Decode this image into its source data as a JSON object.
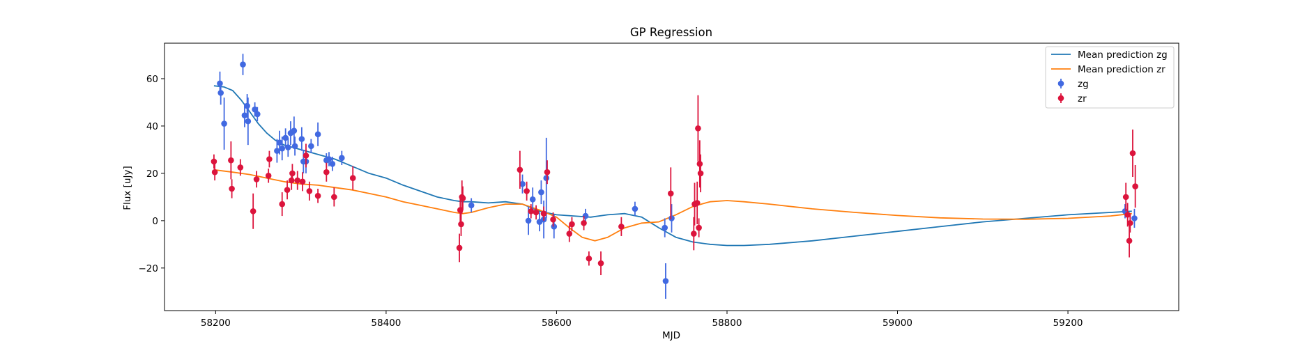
{
  "chart_data": {
    "type": "scatter",
    "title": "GP Regression",
    "xlabel": "MJD",
    "ylabel": "Flux [uJy]",
    "xlim": [
      58140,
      59330
    ],
    "ylim": [
      -38,
      75
    ],
    "xticks": [
      58200,
      58400,
      58600,
      58800,
      59000,
      59200
    ],
    "yticks": [
      -20,
      0,
      20,
      40,
      60
    ],
    "grid": false,
    "legend_position": "top-right",
    "lines": [
      {
        "name": "Mean prediction zg",
        "color": "#1f77b4",
        "x": [
          58198,
          58210,
          58220,
          58230,
          58240,
          58250,
          58260,
          58270,
          58280,
          58290,
          58300,
          58320,
          58340,
          58360,
          58380,
          58400,
          58420,
          58440,
          58460,
          58480,
          58490,
          58500,
          58520,
          58540,
          58560,
          58580,
          58600,
          58620,
          58640,
          58660,
          58680,
          58700,
          58720,
          58740,
          58760,
          58780,
          58800,
          58820,
          58850,
          58900,
          58950,
          59000,
          59050,
          59100,
          59150,
          59200,
          59250,
          59275
        ],
        "y": [
          57,
          56.5,
          55,
          51,
          46,
          41,
          37,
          34,
          32,
          31,
          30,
          28,
          26,
          23,
          20,
          18,
          15,
          12.5,
          10,
          8.5,
          8,
          8,
          7.5,
          8,
          7,
          4,
          2.5,
          2,
          1.5,
          2.5,
          3,
          1.5,
          -3,
          -7,
          -9,
          -10,
          -10.5,
          -10.5,
          -10,
          -8.5,
          -6.5,
          -4.5,
          -2.5,
          -0.5,
          1,
          2.5,
          3.5,
          4
        ]
      },
      {
        "name": "Mean prediction zr",
        "color": "#ff7f0e",
        "x": [
          58198,
          58220,
          58240,
          58260,
          58280,
          58300,
          58320,
          58340,
          58360,
          58380,
          58400,
          58420,
          58440,
          58460,
          58480,
          58490,
          58500,
          58520,
          58540,
          58560,
          58580,
          58600,
          58615,
          58630,
          58645,
          58660,
          58680,
          58700,
          58720,
          58740,
          58760,
          58780,
          58800,
          58820,
          58850,
          58900,
          58950,
          59000,
          59050,
          59100,
          59150,
          59200,
          59250,
          59275
        ],
        "y": [
          21.5,
          20.5,
          19.5,
          18,
          16.5,
          15.5,
          15,
          14,
          13,
          11.5,
          10,
          8,
          6.5,
          5,
          3.5,
          3,
          3.5,
          5.5,
          7,
          7,
          4.5,
          1.5,
          -3,
          -7,
          -8.5,
          -7,
          -3,
          -1,
          -0.5,
          2.5,
          6,
          8,
          8.5,
          8,
          7,
          5,
          3.5,
          2.2,
          1.2,
          0.7,
          0.6,
          1,
          2,
          3
        ]
      }
    ],
    "series": [
      {
        "name": "zg",
        "color": "#4169e1",
        "points": [
          [
            58205,
            58,
            5
          ],
          [
            58206,
            54,
            5
          ],
          [
            58210,
            41,
            11
          ],
          [
            58232,
            66,
            4.5
          ],
          [
            58234,
            44.5,
            5
          ],
          [
            58237,
            48.5,
            5
          ],
          [
            58238,
            42,
            10
          ],
          [
            58246,
            47,
            3
          ],
          [
            58249,
            45,
            3
          ],
          [
            58272,
            29.5,
            5
          ],
          [
            58275,
            33,
            5
          ],
          [
            58278,
            30.5,
            5
          ],
          [
            58282,
            35,
            4
          ],
          [
            58285,
            31,
            4
          ],
          [
            58288,
            37,
            5
          ],
          [
            58292,
            38,
            6
          ],
          [
            58293,
            31.5,
            4
          ],
          [
            58301,
            34.5,
            5
          ],
          [
            58303,
            25,
            5
          ],
          [
            58306,
            25,
            5
          ],
          [
            58312,
            31.5,
            3
          ],
          [
            58320,
            36.5,
            5
          ],
          [
            58330,
            25.5,
            3
          ],
          [
            58333,
            26,
            3
          ],
          [
            58337,
            24,
            3
          ],
          [
            58348,
            26.5,
            3
          ],
          [
            58500,
            6.5,
            3
          ],
          [
            58560,
            15.5,
            4
          ],
          [
            58567,
            0,
            6
          ],
          [
            58572,
            9,
            5
          ],
          [
            58580,
            -0.5,
            4
          ],
          [
            58582,
            12,
            5
          ],
          [
            58585,
            0.5,
            8
          ],
          [
            58588,
            18,
            17
          ],
          [
            58597,
            -2.5,
            5
          ],
          [
            58634,
            2,
            3
          ],
          [
            58692,
            5,
            3
          ],
          [
            58727,
            -3,
            4
          ],
          [
            58728,
            -25.5,
            7.5
          ],
          [
            58735,
            1,
            6
          ],
          [
            59267,
            4,
            3
          ],
          [
            59278,
            1,
            4
          ]
        ]
      },
      {
        "name": "zr",
        "color": "#dc143c",
        "points": [
          [
            58198,
            25,
            3
          ],
          [
            58199,
            20.5,
            3.5
          ],
          [
            58218,
            25.5,
            8
          ],
          [
            58219,
            13.5,
            4
          ],
          [
            58229,
            22.5,
            3.5
          ],
          [
            58244,
            4,
            7.5
          ],
          [
            58248,
            17.5,
            3.5
          ],
          [
            58262,
            19,
            3
          ],
          [
            58263,
            26,
            3.5
          ],
          [
            58278,
            7,
            5
          ],
          [
            58284,
            13,
            4
          ],
          [
            58289,
            17,
            4
          ],
          [
            58290,
            20,
            4
          ],
          [
            58296,
            17,
            4
          ],
          [
            58302,
            16.5,
            4
          ],
          [
            58306,
            27.5,
            5
          ],
          [
            58310,
            12.5,
            4
          ],
          [
            58320,
            10.5,
            3
          ],
          [
            58330,
            20.5,
            4
          ],
          [
            58339,
            10,
            4
          ],
          [
            58361,
            18,
            5
          ],
          [
            58486,
            -11.5,
            6
          ],
          [
            58487,
            4.5,
            5
          ],
          [
            58488,
            -1.5,
            5
          ],
          [
            58489,
            10,
            7
          ],
          [
            58490,
            9.5,
            5
          ],
          [
            58557,
            21.5,
            8
          ],
          [
            58565,
            12.5,
            4
          ],
          [
            58570,
            4,
            3
          ],
          [
            58576,
            3.5,
            3
          ],
          [
            58585,
            3,
            3
          ],
          [
            58589,
            20.5,
            5
          ],
          [
            58596,
            0.5,
            3
          ],
          [
            58615,
            -5.5,
            3.5
          ],
          [
            58618,
            -1.5,
            3
          ],
          [
            58632,
            -1,
            3
          ],
          [
            58638,
            -16,
            3
          ],
          [
            58652,
            -18,
            5
          ],
          [
            58676,
            -2.5,
            4
          ],
          [
            58734,
            11.5,
            11
          ],
          [
            58761,
            -5.5,
            7
          ],
          [
            58762,
            7,
            9
          ],
          [
            58765,
            7.5,
            9
          ],
          [
            58766,
            39,
            14
          ],
          [
            58767,
            -3,
            4
          ],
          [
            58768,
            24,
            10
          ],
          [
            58769,
            20,
            8
          ],
          [
            59268,
            10,
            6
          ],
          [
            59270,
            2.5,
            5
          ],
          [
            59272,
            -8.5,
            7
          ],
          [
            59273,
            -1,
            4
          ],
          [
            59276,
            28.5,
            10
          ],
          [
            59279,
            14.5,
            9
          ]
        ]
      }
    ],
    "legend": [
      "Mean prediction zg",
      "Mean prediction zr",
      "zg",
      "zr"
    ]
  }
}
